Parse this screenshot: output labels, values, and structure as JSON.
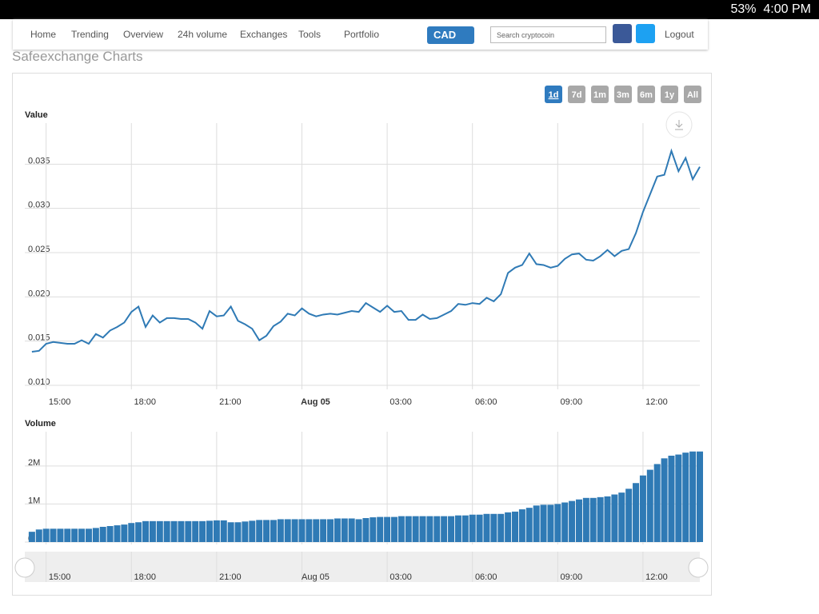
{
  "status_bar": {
    "battery": "53%",
    "time": "4:00 PM"
  },
  "nav": {
    "items": [
      "Home",
      "Trending",
      "Overview",
      "24h volume",
      "Exchanges",
      "Tools",
      "Portfolio"
    ],
    "currency": "CAD",
    "search_placeholder": "Search cryptocoin",
    "logout": "Logout"
  },
  "title": "Safeexchange Charts",
  "range_buttons": [
    "1d",
    "7d",
    "1m",
    "3m",
    "6m",
    "1y",
    "All"
  ],
  "charts": [
    {
      "type": "line",
      "axis_title": "Value",
      "color": "#2f7ab5",
      "x": [
        14.5,
        14.75,
        15,
        15.25,
        15.5,
        15.75,
        16,
        16.25,
        16.5,
        16.75,
        17,
        17.25,
        17.5,
        17.75,
        18,
        18.25,
        18.5,
        18.75,
        19,
        19.25,
        19.5,
        19.75,
        20,
        20.25,
        20.5,
        20.75,
        21,
        21.25,
        21.5,
        21.75,
        22,
        22.25,
        22.5,
        22.75,
        23,
        23.25,
        23.5,
        23.75,
        24,
        24.25,
        24.5,
        24.75,
        25,
        25.25,
        25.5,
        25.75,
        26,
        26.25,
        26.5,
        26.75,
        27,
        27.25,
        27.5,
        27.75,
        28,
        28.25,
        28.5,
        28.75,
        29,
        29.25,
        29.5,
        29.75,
        30,
        30.25,
        30.5,
        30.75,
        31,
        31.25,
        31.5,
        31.75,
        32,
        32.25,
        32.5,
        32.75,
        33,
        33.25,
        33.5,
        33.75,
        34,
        34.25,
        34.5,
        34.75,
        35,
        35.25,
        35.5,
        35.75,
        36,
        36.25,
        36.5,
        36.75,
        37,
        37.25,
        37.5,
        37.75,
        38
      ],
      "values": [
        0.0138,
        0.0139,
        0.0147,
        0.0149,
        0.0148,
        0.0147,
        0.0147,
        0.0151,
        0.0147,
        0.0158,
        0.0154,
        0.0162,
        0.0166,
        0.0171,
        0.0183,
        0.0189,
        0.0166,
        0.0179,
        0.0171,
        0.0176,
        0.0176,
        0.0175,
        0.0175,
        0.0171,
        0.0164,
        0.0184,
        0.0178,
        0.0179,
        0.0189,
        0.0173,
        0.0169,
        0.0164,
        0.0151,
        0.0156,
        0.0167,
        0.0172,
        0.0181,
        0.0179,
        0.0187,
        0.0181,
        0.0178,
        0.018,
        0.0181,
        0.018,
        0.0182,
        0.0184,
        0.0183,
        0.0193,
        0.0188,
        0.0183,
        0.019,
        0.0183,
        0.0184,
        0.0174,
        0.0174,
        0.018,
        0.0175,
        0.0176,
        0.018,
        0.0184,
        0.0192,
        0.0191,
        0.0193,
        0.0192,
        0.0199,
        0.0195,
        0.0203,
        0.0227,
        0.0233,
        0.0236,
        0.0249,
        0.0237,
        0.0236,
        0.0233,
        0.0235,
        0.0243,
        0.0248,
        0.0249,
        0.0242,
        0.0241,
        0.0246,
        0.0253,
        0.0246,
        0.0252,
        0.0254,
        0.0272,
        0.0296,
        0.0316,
        0.0336,
        0.0338,
        0.0365,
        0.0342,
        0.0357,
        0.0333,
        0.0347
      ],
      "xlim": [
        14.25,
        38
      ],
      "xticks": [
        {
          "value": 15,
          "label": "15:00"
        },
        {
          "value": 18,
          "label": "18:00"
        },
        {
          "value": 21,
          "label": "21:00"
        },
        {
          "value": 24,
          "label": "Aug 05"
        },
        {
          "value": 27,
          "label": "03:00"
        },
        {
          "value": 30,
          "label": "06:00"
        },
        {
          "value": 33,
          "label": "09:00"
        },
        {
          "value": 36,
          "label": "12:00"
        }
      ],
      "ylim": [
        0.01,
        0.04
      ],
      "yticks": [
        {
          "value": 0.01,
          "label": "0.010"
        },
        {
          "value": 0.015,
          "label": "0.015"
        },
        {
          "value": 0.02,
          "label": "0.020"
        },
        {
          "value": 0.025,
          "label": "0.025"
        },
        {
          "value": 0.03,
          "label": "0.030"
        },
        {
          "value": 0.035,
          "label": "0.035"
        }
      ]
    },
    {
      "type": "bar",
      "axis_title": "Volume",
      "color": "#2f7ab5",
      "x": [
        14.5,
        14.75,
        15,
        15.25,
        15.5,
        15.75,
        16,
        16.25,
        16.5,
        16.75,
        17,
        17.25,
        17.5,
        17.75,
        18,
        18.25,
        18.5,
        18.75,
        19,
        19.25,
        19.5,
        19.75,
        20,
        20.25,
        20.5,
        20.75,
        21,
        21.25,
        21.5,
        21.75,
        22,
        22.25,
        22.5,
        22.75,
        23,
        23.25,
        23.5,
        23.75,
        24,
        24.25,
        24.5,
        24.75,
        25,
        25.25,
        25.5,
        25.75,
        26,
        26.25,
        26.5,
        26.75,
        27,
        27.25,
        27.5,
        27.75,
        28,
        28.25,
        28.5,
        28.75,
        29,
        29.25,
        29.5,
        29.75,
        30,
        30.25,
        30.5,
        30.75,
        31,
        31.25,
        31.5,
        31.75,
        32,
        32.25,
        32.5,
        32.75,
        33,
        33.25,
        33.5,
        33.75,
        34,
        34.25,
        34.5,
        34.75,
        35,
        35.25,
        35.5,
        35.75,
        36,
        36.25,
        36.5,
        36.75,
        37,
        37.25,
        37.5,
        37.75,
        38
      ],
      "values": [
        270000,
        330000,
        350000,
        350000,
        350000,
        350000,
        350000,
        350000,
        350000,
        370000,
        400000,
        420000,
        440000,
        460000,
        500000,
        520000,
        550000,
        550000,
        550000,
        550000,
        550000,
        550000,
        550000,
        550000,
        550000,
        560000,
        570000,
        570000,
        520000,
        520000,
        540000,
        560000,
        580000,
        580000,
        580000,
        600000,
        600000,
        600000,
        600000,
        600000,
        600000,
        600000,
        600000,
        620000,
        620000,
        620000,
        600000,
        630000,
        650000,
        660000,
        660000,
        660000,
        680000,
        680000,
        680000,
        680000,
        680000,
        680000,
        680000,
        680000,
        700000,
        700000,
        720000,
        720000,
        740000,
        740000,
        740000,
        780000,
        800000,
        860000,
        900000,
        960000,
        980000,
        980000,
        1000000,
        1040000,
        1080000,
        1120000,
        1160000,
        1160000,
        1180000,
        1200000,
        1250000,
        1300000,
        1400000,
        1550000,
        1750000,
        1900000,
        2050000,
        2200000,
        2270000,
        2300000,
        2350000,
        2380000,
        2380000
      ],
      "xlim": [
        14.25,
        38
      ],
      "xticks": [
        {
          "value": 15,
          "label": "15:00"
        },
        {
          "value": 18,
          "label": "18:00"
        },
        {
          "value": 21,
          "label": "21:00"
        },
        {
          "value": 24,
          "label": "Aug 05"
        },
        {
          "value": 27,
          "label": "03:00"
        },
        {
          "value": 30,
          "label": "06:00"
        },
        {
          "value": 33,
          "label": "09:00"
        },
        {
          "value": 36,
          "label": "12:00"
        }
      ],
      "ylim": [
        0,
        2900000
      ],
      "yticks": [
        0,
        {
          "value": 1000000,
          "label": "1M"
        },
        {
          "value": 2000000,
          "label": "2M"
        }
      ]
    }
  ]
}
